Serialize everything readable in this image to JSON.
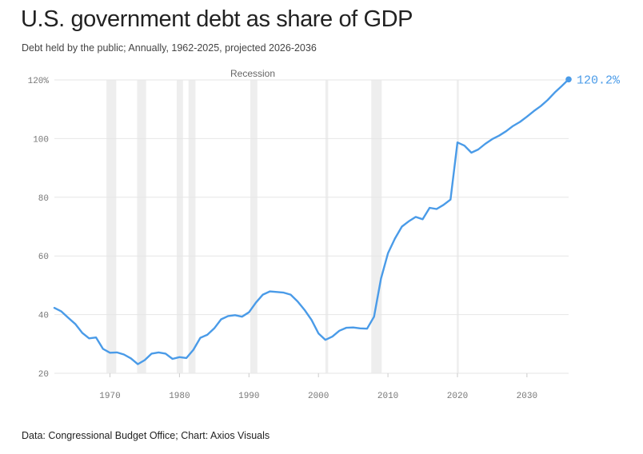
{
  "title": "U.S. government debt as share of GDP",
  "subtitle": "Debt held by the public; Annually, 1962-2025, projected 2026-2036",
  "source": "Data: Congressional Budget Office; Chart: Axios Visuals",
  "colors": {
    "line": "#4a9be8",
    "recession": "#eeeeee",
    "grid": "#e6e6e6",
    "text": "#222222"
  },
  "chart_data": {
    "type": "line",
    "title": "U.S. government debt as share of GDP",
    "xlabel": "",
    "ylabel": "",
    "xlim": [
      1962,
      2036
    ],
    "ylim": [
      20,
      120
    ],
    "grid": true,
    "yticks": [
      20,
      40,
      60,
      80,
      100,
      120
    ],
    "ytick_labels": [
      "20",
      "40",
      "60",
      "80",
      "100",
      "120%"
    ],
    "xticks": [
      1970,
      1980,
      1990,
      2000,
      2010,
      2020,
      2030
    ],
    "xtick_labels": [
      "1970",
      "1980",
      "1990",
      "2000",
      "2010",
      "2020",
      "2030"
    ],
    "recession_label": "Recession",
    "recessions": [
      [
        1969.5,
        1970.9
      ],
      [
        1973.9,
        1975.2
      ],
      [
        1979.6,
        1980.5
      ],
      [
        1981.3,
        1982.3
      ],
      [
        1990.2,
        1991.2
      ],
      [
        2001.0,
        2001.4
      ],
      [
        2007.6,
        2009.1
      ],
      [
        2019.9,
        2020.2
      ]
    ],
    "end_label": "120.2%",
    "series": [
      {
        "name": "Debt held by the public",
        "x": [
          1962,
          1963,
          1964,
          1965,
          1966,
          1967,
          1968,
          1969,
          1970,
          1971,
          1972,
          1973,
          1974,
          1975,
          1976,
          1977,
          1978,
          1979,
          1980,
          1981,
          1982,
          1983,
          1984,
          1985,
          1986,
          1987,
          1988,
          1989,
          1990,
          1991,
          1992,
          1993,
          1994,
          1995,
          1996,
          1997,
          1998,
          1999,
          2000,
          2001,
          2002,
          2003,
          2004,
          2005,
          2006,
          2007,
          2008,
          2009,
          2010,
          2011,
          2012,
          2013,
          2014,
          2015,
          2016,
          2017,
          2018,
          2019,
          2020,
          2021,
          2022,
          2023,
          2024,
          2025,
          2026,
          2027,
          2028,
          2029,
          2030,
          2031,
          2032,
          2033,
          2034,
          2035,
          2036
        ],
        "values": [
          42.3,
          41.1,
          38.9,
          36.8,
          33.8,
          31.9,
          32.2,
          28.3,
          27.0,
          27.1,
          26.4,
          25.1,
          23.1,
          24.5,
          26.7,
          27.1,
          26.7,
          24.9,
          25.5,
          25.2,
          28.0,
          32.1,
          33.1,
          35.3,
          38.4,
          39.5,
          39.8,
          39.3,
          40.8,
          44.1,
          46.8,
          47.9,
          47.7,
          47.5,
          46.8,
          44.5,
          41.6,
          38.2,
          33.6,
          31.4,
          32.5,
          34.5,
          35.5,
          35.6,
          35.3,
          35.2,
          39.3,
          52.3,
          60.9,
          65.9,
          70.0,
          71.8,
          73.3,
          72.5,
          76.4,
          76.0,
          77.4,
          79.2,
          98.7,
          97.6,
          95.2,
          96.3,
          98.2,
          99.8,
          101.0,
          102.5,
          104.3,
          105.7,
          107.5,
          109.4,
          111.1,
          113.2,
          115.7,
          117.9,
          120.2
        ]
      }
    ]
  }
}
